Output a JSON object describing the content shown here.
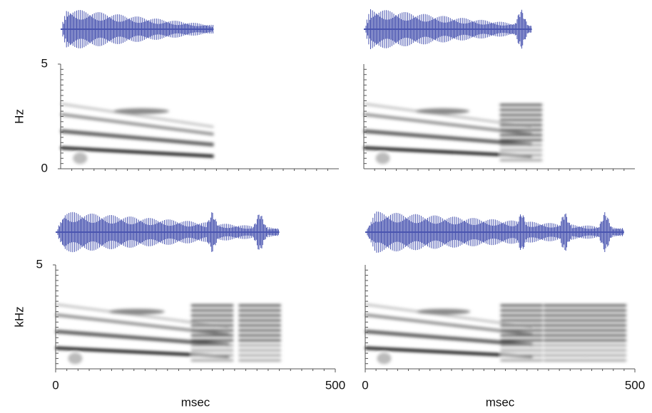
{
  "chart_data": [
    {
      "type": "spectrogram",
      "ylabel": "Hz",
      "ylim": [
        0,
        5
      ],
      "yticks": [
        0,
        5
      ]
    },
    {
      "type": "spectrogram"
    },
    {
      "type": "spectrogram",
      "ylabel": "kHz",
      "ylim": [
        0,
        5
      ],
      "yticks": [
        5
      ],
      "xlim": [
        0,
        500
      ],
      "xticks": [
        0,
        500
      ],
      "xlabel": "msec"
    },
    {
      "type": "spectrogram",
      "xlim": [
        0,
        500
      ],
      "xticks": [
        0,
        500
      ],
      "xlabel": "msec"
    }
  ]
}
